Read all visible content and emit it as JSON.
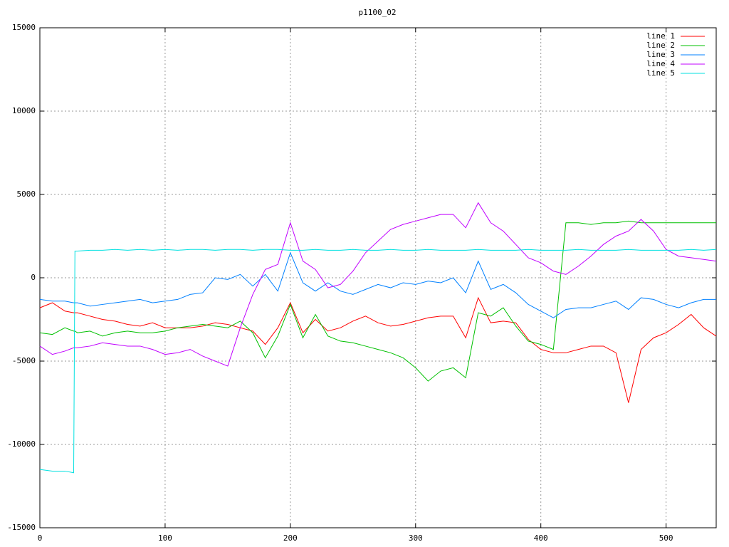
{
  "chart_data": {
    "type": "line",
    "title": "p1100_02",
    "x": [
      0,
      10,
      20,
      27,
      28,
      30,
      40,
      50,
      60,
      70,
      80,
      90,
      100,
      110,
      120,
      130,
      140,
      150,
      160,
      170,
      180,
      190,
      200,
      210,
      220,
      230,
      240,
      250,
      260,
      270,
      280,
      290,
      300,
      310,
      320,
      330,
      340,
      350,
      360,
      370,
      380,
      390,
      400,
      410,
      420,
      430,
      440,
      450,
      460,
      470,
      480,
      490,
      500,
      510,
      520,
      530,
      540
    ],
    "series": [
      {
        "name": "line 1",
        "color": "#ff0000",
        "values": [
          -1800,
          -1500,
          -2000,
          -2100,
          -2100,
          -2100,
          -2300,
          -2500,
          -2600,
          -2800,
          -2900,
          -2700,
          -3000,
          -3000,
          -3000,
          -2900,
          -2700,
          -2800,
          -3000,
          -3200,
          -4000,
          -3000,
          -1500,
          -3300,
          -2500,
          -3200,
          -3000,
          -2600,
          -2300,
          -2700,
          -2900,
          -2800,
          -2600,
          -2400,
          -2300,
          -2300,
          -3600,
          -1200,
          -2700,
          -2600,
          -2700,
          -3700,
          -4300,
          -4500,
          -4500,
          -4300,
          -4100,
          -4100,
          -4500,
          -7500,
          -4300,
          -3600,
          -3300,
          -2800,
          -2200,
          -3000,
          -3500
        ]
      },
      {
        "name": "line 2",
        "color": "#00c000",
        "values": [
          -3300,
          -3400,
          -3000,
          -3200,
          -3200,
          -3300,
          -3200,
          -3500,
          -3300,
          -3200,
          -3300,
          -3300,
          -3200,
          -3000,
          -2900,
          -2800,
          -2900,
          -3000,
          -2600,
          -3300,
          -4800,
          -3500,
          -1600,
          -3600,
          -2200,
          -3500,
          -3800,
          -3900,
          -4100,
          -4300,
          -4500,
          -4800,
          -5400,
          -6200,
          -5600,
          -5400,
          -6000,
          -2100,
          -2300,
          -1800,
          -2900,
          -3800,
          -4000,
          -4300,
          3300,
          3300,
          3200,
          3300,
          3300,
          3400,
          3300,
          3300,
          3300,
          3300,
          3300,
          3300,
          3300
        ]
      },
      {
        "name": "line 3",
        "color": "#0080ff",
        "values": [
          -1300,
          -1400,
          -1400,
          -1500,
          -1500,
          -1500,
          -1700,
          -1600,
          -1500,
          -1400,
          -1300,
          -1500,
          -1400,
          -1300,
          -1000,
          -900,
          0,
          -100,
          200,
          -500,
          200,
          -800,
          1500,
          -300,
          -800,
          -300,
          -800,
          -1000,
          -700,
          -400,
          -600,
          -300,
          -400,
          -200,
          -300,
          0,
          -900,
          1000,
          -700,
          -400,
          -900,
          -1600,
          -2000,
          -2400,
          -1900,
          -1800,
          -1800,
          -1600,
          -1400,
          -1900,
          -1200,
          -1300,
          -1600,
          -1800,
          -1500,
          -1300,
          -1300
        ]
      },
      {
        "name": "line 4",
        "color": "#c000ff",
        "values": [
          -4100,
          -4600,
          -4400,
          -4200,
          -4200,
          -4200,
          -4100,
          -3900,
          -4000,
          -4100,
          -4100,
          -4300,
          -4600,
          -4500,
          -4300,
          -4700,
          -5000,
          -5300,
          -3000,
          -1000,
          500,
          800,
          3300,
          1000,
          500,
          -600,
          -400,
          400,
          1500,
          2200,
          2900,
          3200,
          3400,
          3600,
          3800,
          3800,
          3000,
          4500,
          3300,
          2800,
          2000,
          1200,
          900,
          400,
          200,
          700,
          1300,
          2000,
          2500,
          2800,
          3500,
          2800,
          1700,
          1300,
          1200,
          1100,
          1000
        ]
      },
      {
        "name": "line 5",
        "color": "#00e0e0",
        "values": [
          -11500,
          -11600,
          -11600,
          -11700,
          1600,
          1600,
          1650,
          1650,
          1700,
          1650,
          1700,
          1650,
          1700,
          1650,
          1700,
          1700,
          1650,
          1700,
          1700,
          1650,
          1700,
          1700,
          1650,
          1650,
          1700,
          1650,
          1650,
          1700,
          1650,
          1650,
          1700,
          1650,
          1650,
          1700,
          1650,
          1650,
          1650,
          1700,
          1650,
          1650,
          1650,
          1700,
          1650,
          1650,
          1650,
          1700,
          1650,
          1650,
          1650,
          1700,
          1650,
          1650,
          1650,
          1650,
          1700,
          1650,
          1700
        ]
      }
    ],
    "xlim": [
      0,
      540
    ],
    "ylim": [
      -15000,
      15000
    ],
    "xticks": [
      0,
      100,
      200,
      300,
      400,
      500
    ],
    "yticks": [
      -15000,
      -10000,
      -5000,
      0,
      5000,
      10000,
      15000
    ],
    "grid": true,
    "legend": "top-right"
  }
}
